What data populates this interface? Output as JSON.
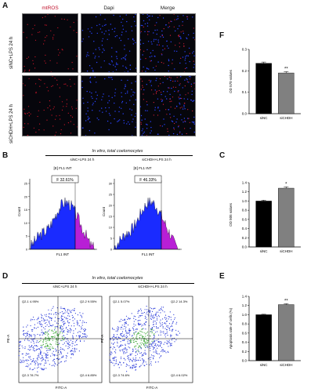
{
  "panels": {
    "A": "A",
    "B": "B",
    "C": "C",
    "D": "D",
    "E": "E",
    "F": "F"
  },
  "A": {
    "columns": [
      "mtROS",
      "Dapi",
      "Merge"
    ],
    "rows": [
      "siNC+LPS 24 h",
      "siCHDH+LPS 24 h"
    ]
  },
  "B": {
    "title": "In vitro, total coelomocytes",
    "plots": [
      {
        "subtitle": "siNC+LPS 24 h",
        "gate_header": "[E] FL1 INT",
        "gate_label": "F 32.61%",
        "ylabel": "Count",
        "xlabel": "FL1 INT",
        "ymax": 25
      },
      {
        "subtitle": "siCHDH+LPS 24 h",
        "gate_header": "[E] FL1 INT",
        "gate_label": "F 46.33%",
        "ylabel": "Count",
        "xlabel": "FL1 INT",
        "ymax": 30
      }
    ]
  },
  "D": {
    "title": "In vitro, total coelomocytes",
    "plots": [
      {
        "subtitle": "siNC+LPS 24 h",
        "ylabel": "PE-A",
        "xlabel": "FITC-A",
        "q": [
          "Q2-1 4.95%",
          "Q2-2 9.55%",
          "Q2-3 78.7%",
          "Q2-4 6.85%"
        ]
      },
      {
        "subtitle": "siCHDH+LPS 24 h",
        "ylabel": "PE-A",
        "xlabel": "FITC-A",
        "q": [
          "Q2-1 5.07%",
          "Q2-2 14.3%",
          "Q2-3 74.6%",
          "Q2-4 6.02%"
        ]
      }
    ]
  },
  "colors": {
    "bar1": "#000000",
    "bar2": "#808080",
    "hist_low": "#1a2bff",
    "hist_high": "#b81fd6",
    "dot_blue": "#2a3bd9",
    "dot_green": "#3fa83a"
  },
  "chart_data": [
    {
      "panel": "F",
      "type": "bar",
      "categories": [
        "siNC",
        "siCHDH"
      ],
      "values": [
        0.235,
        0.19
      ],
      "errors": [
        0.006,
        0.006
      ],
      "annotations": [
        "",
        "**"
      ],
      "ylabel": "OD 570 values",
      "ylim": [
        0.0,
        0.3
      ],
      "yticks": [
        0.0,
        0.1,
        0.2,
        0.3
      ]
    },
    {
      "panel": "C",
      "type": "bar",
      "categories": [
        "siNC",
        "siCHDH"
      ],
      "values": [
        1.0,
        1.28
      ],
      "errors": [
        0.02,
        0.03
      ],
      "annotations": [
        "",
        "*"
      ],
      "ylabel": "OD 505 values",
      "ylim": [
        0.0,
        1.4
      ],
      "yticks": [
        0.0,
        0.2,
        0.4,
        0.6,
        0.8,
        1.0,
        1.2,
        1.4
      ]
    },
    {
      "panel": "E",
      "type": "bar",
      "categories": [
        "siNC",
        "siCHDH"
      ],
      "values": [
        1.0,
        1.22
      ],
      "errors": [
        0.01,
        0.02
      ],
      "annotations": [
        "",
        "**"
      ],
      "ylabel": "Apoptosis rate of cells (%)",
      "ylim": [
        0.0,
        1.4
      ],
      "yticks": [
        0.0,
        0.2,
        0.4,
        0.6,
        0.8,
        1.0,
        1.2,
        1.4
      ]
    }
  ]
}
